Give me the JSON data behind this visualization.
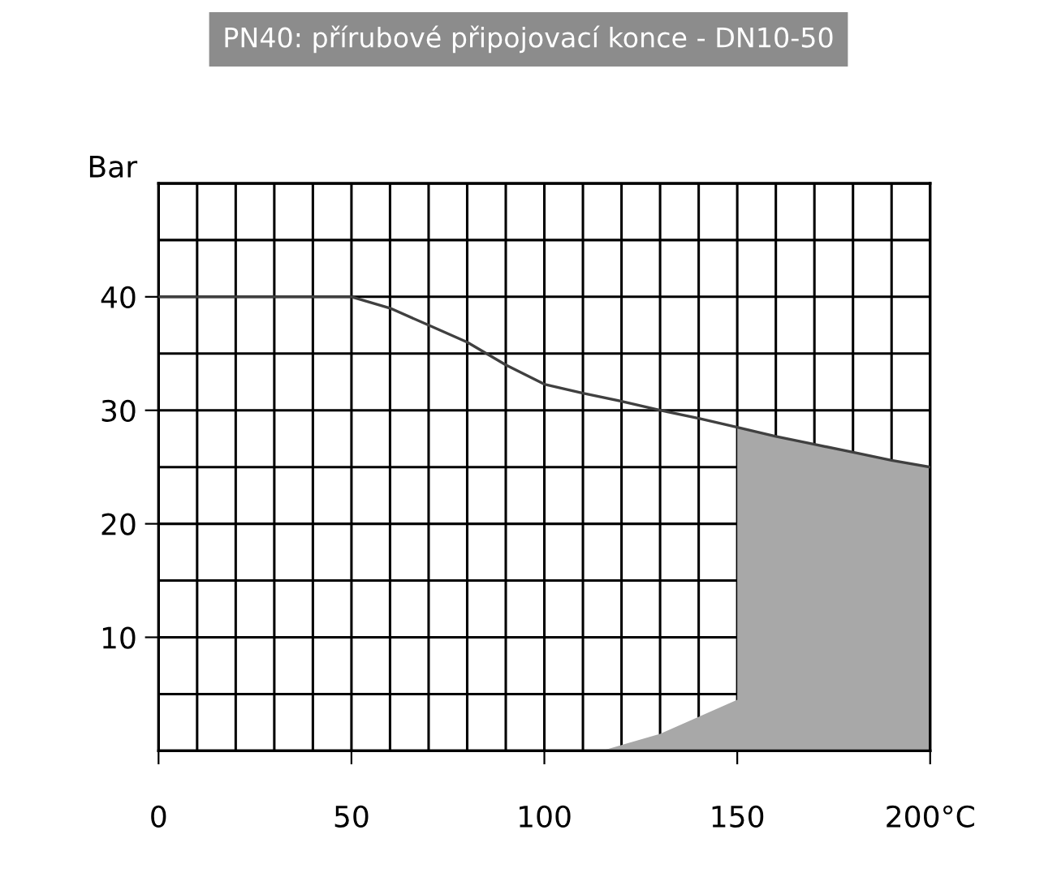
{
  "chart_data": {
    "type": "line",
    "title": "PN40: přírubové připojovací konce - DN10-50",
    "ylabel": "Bar",
    "series": [
      {
        "type": "area",
        "color": "#a8a8a8",
        "x": [
          115,
          120,
          130,
          140,
          150,
          150,
          160,
          170,
          180,
          190,
          200
        ],
        "values": [
          0,
          0.5,
          1.5,
          3,
          4.5,
          28.5,
          27.7,
          27,
          26.3,
          25.6,
          25
        ]
      },
      {
        "color": "#404040",
        "x": [
          0,
          50,
          60,
          70,
          80,
          90,
          100,
          110,
          120,
          130,
          140,
          150,
          160,
          170,
          180,
          190,
          200
        ],
        "values": [
          40,
          40,
          39,
          37.5,
          36,
          34,
          32.3,
          31.5,
          30.8,
          30,
          29.3,
          28.5,
          27.7,
          27,
          26.3,
          25.6,
          25
        ]
      }
    ],
    "xlim": [
      0,
      200
    ],
    "ylim": [
      0,
      50
    ],
    "xticks": [
      0,
      50,
      100,
      150,
      {
        "value": 200,
        "label": "200°C"
      }
    ],
    "yticks": [
      10,
      20,
      30,
      40
    ],
    "grid": true,
    "legend": false
  }
}
